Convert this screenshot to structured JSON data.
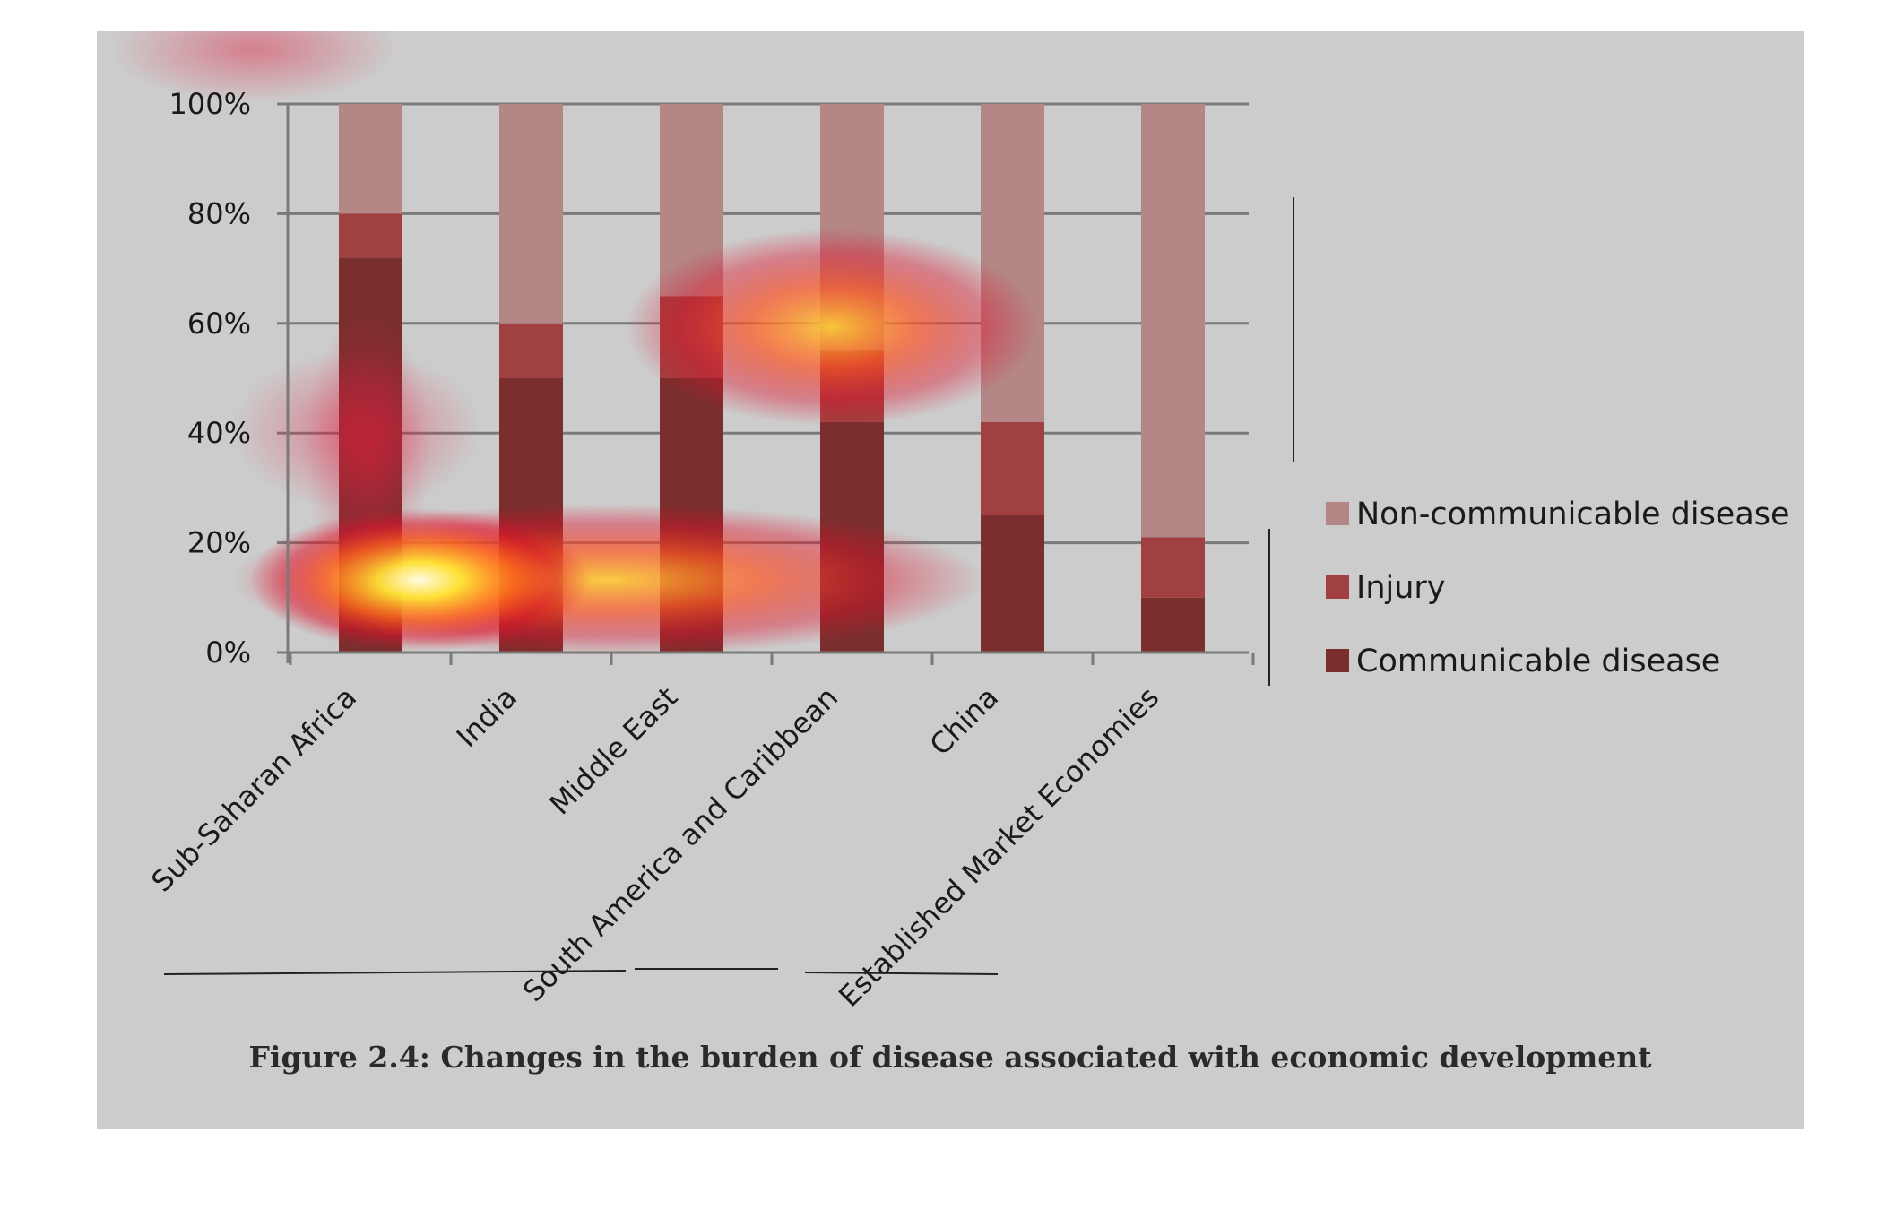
{
  "caption": "Figure 2.4: Changes in the burden of disease associated with economic development",
  "chart_data": {
    "type": "bar",
    "stacked": true,
    "categories": [
      "Sub-Saharan Africa",
      "India",
      "Middle East",
      "South America and Caribbean",
      "China",
      "Established Market Economies"
    ],
    "series": [
      {
        "name": "Communicable disease",
        "color": "#7a2e2e",
        "values": [
          72,
          50,
          50,
          42,
          25,
          10
        ]
      },
      {
        "name": "Injury",
        "color": "#a04040",
        "values": [
          8,
          10,
          15,
          13,
          17,
          11
        ]
      },
      {
        "name": "Non-communicable disease",
        "color": "#b48686",
        "values": [
          20,
          40,
          35,
          45,
          58,
          79
        ]
      }
    ],
    "y_ticks": [
      "0%",
      "20%",
      "40%",
      "60%",
      "80%",
      "100%"
    ],
    "ylim": [
      0,
      100
    ],
    "grid": true,
    "legend_position": "right",
    "legend_order": [
      "Non-communicable disease",
      "Injury",
      "Communicable disease"
    ],
    "overlay": "heatmap highlights"
  }
}
